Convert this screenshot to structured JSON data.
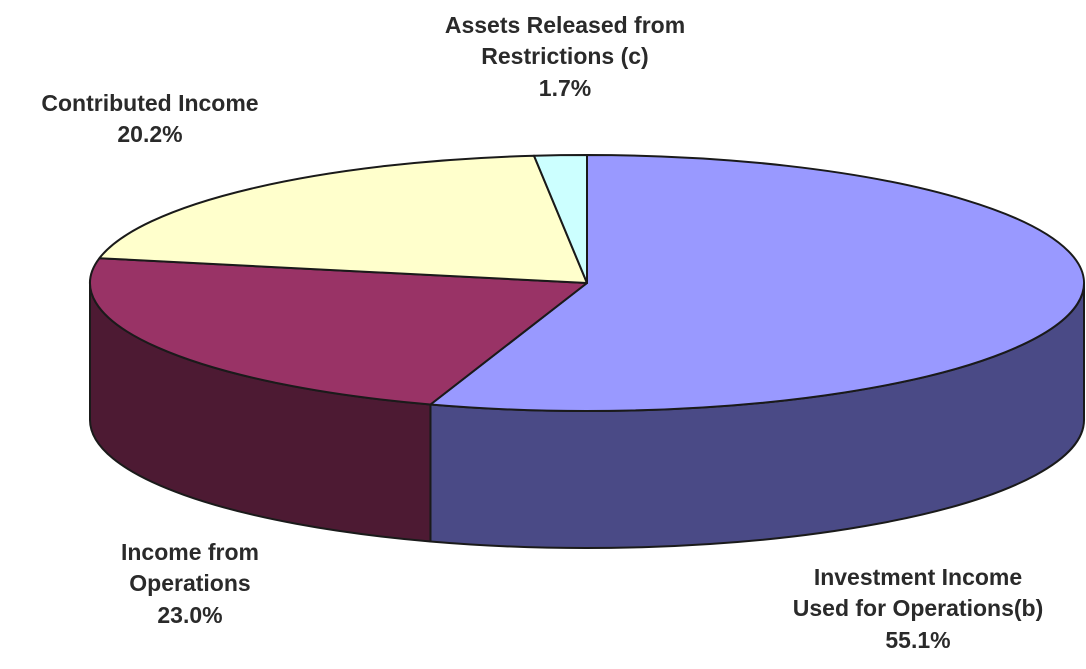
{
  "chart_data": {
    "type": "pie",
    "style": "3d",
    "title": "",
    "slices": [
      {
        "label_lines": [
          "Investment Income",
          "Used for Operations(b)"
        ],
        "percent_label": "55.1%",
        "value": 55.1,
        "top_color": "#9999ff",
        "side_color": "#4a4a86"
      },
      {
        "label_lines": [
          "Income from",
          "Operations"
        ],
        "percent_label": "23.0%",
        "value": 23.0,
        "top_color": "#993366",
        "side_color": "#4d1a33"
      },
      {
        "label_lines": [
          "Contributed Income"
        ],
        "percent_label": "20.2%",
        "value": 20.2,
        "top_color": "#ffffcc",
        "side_color": "#bdbd96"
      },
      {
        "label_lines": [
          "Assets Released from",
          "Restrictions (c)"
        ],
        "percent_label": "1.7%",
        "value": 1.7,
        "top_color": "#ccffff",
        "side_color": "#8fb3b3"
      }
    ]
  }
}
